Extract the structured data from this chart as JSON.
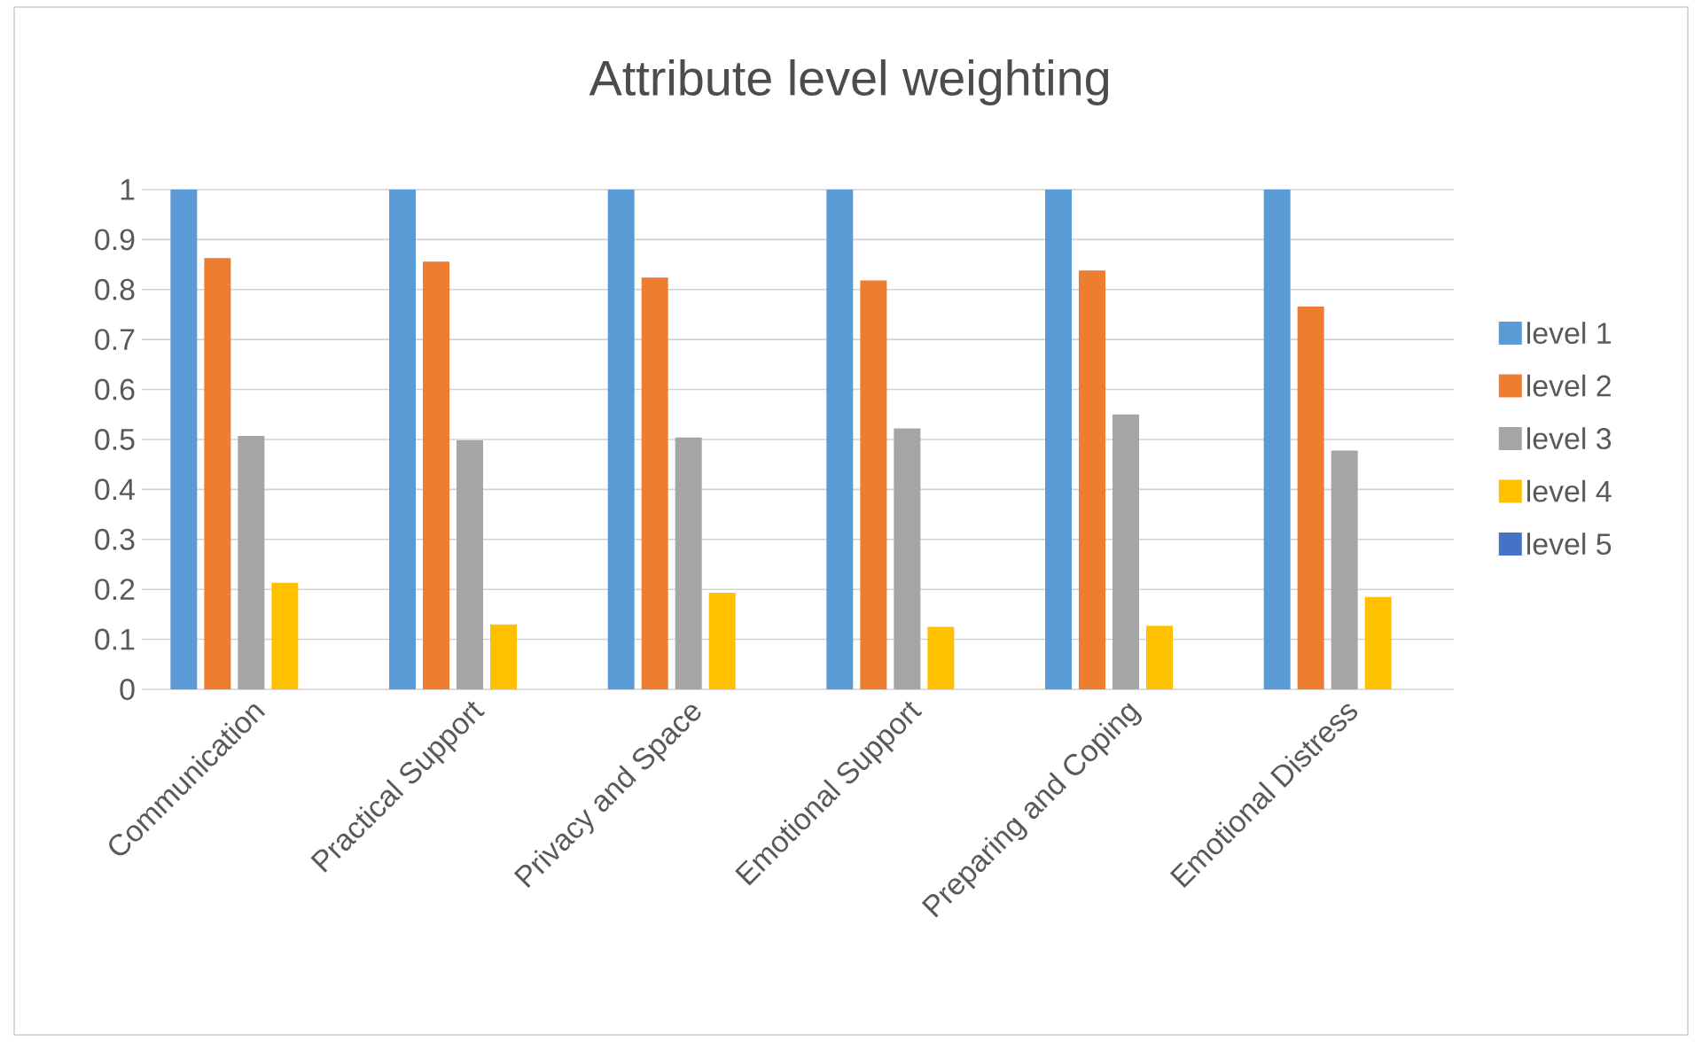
{
  "chart_data": {
    "type": "bar",
    "title": "Attribute level weighting",
    "categories": [
      "Communication",
      "Practical Support",
      "Privacy and Space",
      "Emotional Support",
      "Preparing and Coping",
      "Emotional Distress"
    ],
    "series": [
      {
        "name": "level 1",
        "color": "#5b9bd5",
        "values": [
          1,
          1,
          1,
          1,
          1,
          1
        ]
      },
      {
        "name": "level 2",
        "color": "#ed7d31",
        "values": [
          0.863,
          0.856,
          0.824,
          0.818,
          0.838,
          0.766
        ]
      },
      {
        "name": "level 3",
        "color": "#a5a5a5",
        "values": [
          0.507,
          0.498,
          0.504,
          0.522,
          0.55,
          0.478
        ]
      },
      {
        "name": "level 4",
        "color": "#ffc000",
        "values": [
          0.213,
          0.13,
          0.193,
          0.125,
          0.127,
          0.185
        ]
      },
      {
        "name": "level 5",
        "color": "#4472c4",
        "values": [
          0,
          0,
          0,
          0,
          0,
          0
        ]
      }
    ],
    "ylim": [
      0,
      1
    ],
    "yticks": [
      0,
      0.1,
      0.2,
      0.3,
      0.4,
      0.5,
      0.6,
      0.7,
      0.8,
      0.9,
      1
    ],
    "grid": "y",
    "legend": "right"
  }
}
